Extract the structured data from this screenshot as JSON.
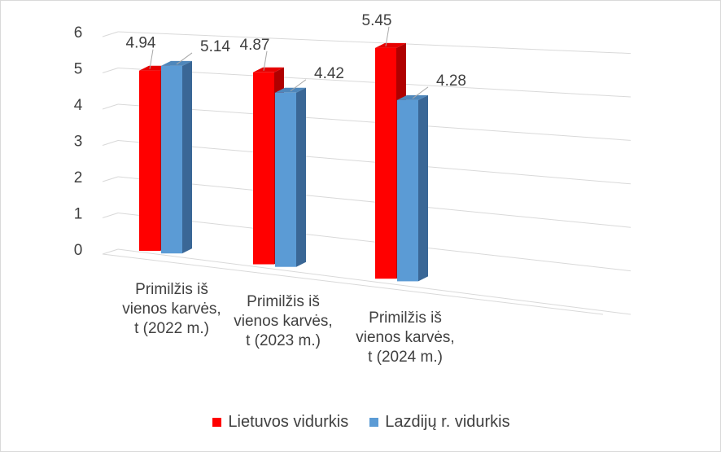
{
  "chart_data": {
    "type": "bar",
    "style": "3d-clustered-column",
    "categories": [
      [
        "Primilžis iš",
        "vienos karvės,",
        "t (2022 m.)"
      ],
      [
        "Primilžis iš",
        "vienos karvės,",
        "t (2023 m.)"
      ],
      [
        "Primilžis iš",
        "vienos karvės,",
        "t (2024 m.)"
      ]
    ],
    "series": [
      {
        "name": "Lietuvos vidurkis",
        "values": [
          4.94,
          4.87,
          5.45
        ],
        "color": "#ff0000",
        "side_color": "#b00000",
        "top_color": "#e60000"
      },
      {
        "name": "Lazdijų r. vidurkis",
        "values": [
          5.14,
          4.42,
          4.28
        ],
        "color": "#5b9bd5",
        "side_color": "#3a6796",
        "top_color": "#4f87bb"
      }
    ],
    "data_labels": [
      [
        "4.94",
        "4.87",
        "5.45"
      ],
      [
        "5.14",
        "4.42",
        "4.28"
      ]
    ],
    "y_ticks": [
      "0",
      "1",
      "2",
      "3",
      "4",
      "5",
      "6"
    ],
    "ylim": [
      0,
      6
    ],
    "grid": true,
    "legend_position": "bottom"
  }
}
